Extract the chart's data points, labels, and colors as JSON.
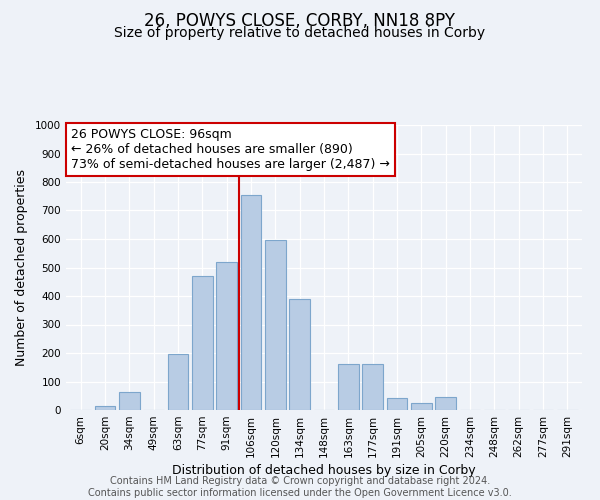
{
  "title": "26, POWYS CLOSE, CORBY, NN18 8PY",
  "subtitle": "Size of property relative to detached houses in Corby",
  "xlabel": "Distribution of detached houses by size in Corby",
  "ylabel": "Number of detached properties",
  "bar_labels": [
    "6sqm",
    "20sqm",
    "34sqm",
    "49sqm",
    "63sqm",
    "77sqm",
    "91sqm",
    "106sqm",
    "120sqm",
    "134sqm",
    "148sqm",
    "163sqm",
    "177sqm",
    "191sqm",
    "205sqm",
    "220sqm",
    "234sqm",
    "248sqm",
    "262sqm",
    "277sqm",
    "291sqm"
  ],
  "bar_values": [
    0,
    13,
    62,
    0,
    195,
    470,
    520,
    755,
    595,
    390,
    0,
    160,
    160,
    42,
    25,
    45,
    0,
    0,
    0,
    0,
    0
  ],
  "bar_color": "#b8cce4",
  "bar_edge_color": "#7da6cc",
  "vline_color": "#cc0000",
  "vline_x_index": 6,
  "annotation_line1": "26 POWYS CLOSE: 96sqm",
  "annotation_line2": "← 26% of detached houses are smaller (890)",
  "annotation_line3": "73% of semi-detached houses are larger (2,487) →",
  "ylim": [
    0,
    1000
  ],
  "yticks": [
    0,
    100,
    200,
    300,
    400,
    500,
    600,
    700,
    800,
    900,
    1000
  ],
  "footer_line1": "Contains HM Land Registry data © Crown copyright and database right 2024.",
  "footer_line2": "Contains public sector information licensed under the Open Government Licence v3.0.",
  "bg_color": "#eef2f8",
  "plot_bg_color": "#eef2f8",
  "grid_color": "#d0d8e8",
  "title_fontsize": 12,
  "subtitle_fontsize": 10,
  "axis_label_fontsize": 9,
  "tick_fontsize": 7.5,
  "annotation_fontsize": 9,
  "footer_fontsize": 7
}
